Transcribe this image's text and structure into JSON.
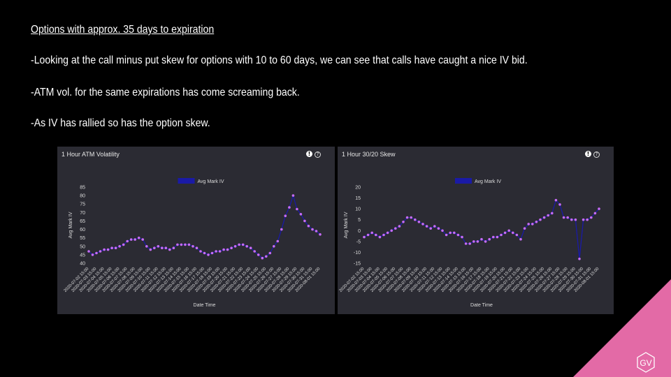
{
  "slide": {
    "heading": "Options with approx. 35 days to expiration",
    "bullets": [
      "-Looking at the call minus put skew for options with 10 to 60 days, we can see that calls have caught a nice IV bid.",
      "-ATM vol. for the same expirations has come screaming back.",
      "-As IV has rallied so has the option skew."
    ],
    "logo_text": "GV"
  },
  "colors": {
    "background": "#000000",
    "panel": "#2b2b33",
    "marker": "#c66cf5",
    "line": "#1a1aa6",
    "logo": "#e36aa6"
  },
  "chart_data": [
    {
      "type": "line",
      "title": "1 Hour ATM Volatility",
      "xlabel": "Date Time",
      "ylabel": "Avg Mark IV",
      "legend": [
        "Avg Mark IV"
      ],
      "legend_position": "top-center",
      "ylim": [
        40,
        85
      ],
      "yticks": [
        40,
        45,
        50,
        55,
        60,
        65,
        70,
        75,
        80,
        85
      ],
      "xticks": [
        "2020-07-02 15:00",
        "2020-07-03 15:00",
        "2020-07-04 15:00",
        "2020-07-05 15:00",
        "2020-07-06 15:00",
        "2020-07-07 15:00",
        "2020-07-08 15:00",
        "2020-07-09 15:00",
        "2020-07-10 15:00",
        "2020-07-11 15:00",
        "2020-07-12 15:00",
        "2020-07-13 15:00",
        "2020-07-14 15:00",
        "2020-07-15 15:00",
        "2020-07-16 15:00",
        "2020-07-17 15:00",
        "2020-07-18 15:00",
        "2020-07-19 15:00",
        "2020-07-20 15:00",
        "2020-07-21 15:00",
        "2020-07-22 15:00",
        "2020-07-23 15:00",
        "2020-07-24 15:00",
        "2020-07-25 15:00",
        "2020-07-26 15:00",
        "2020-07-27 15:00",
        "2020-07-28 15:00",
        "2020-07-29 15:00",
        "2020-07-30 15:00",
        "2020-07-31 15:00",
        "2020-08-01 15:00"
      ],
      "series": [
        {
          "name": "Avg Mark IV",
          "x": [
            0,
            0.5,
            1,
            1.5,
            2,
            2.5,
            3,
            3.5,
            4,
            4.5,
            5,
            5.5,
            6,
            6.5,
            7,
            7.5,
            8,
            8.5,
            9,
            9.5,
            10,
            10.5,
            11,
            11.5,
            12,
            12.5,
            13,
            13.5,
            14,
            14.5,
            15,
            15.5,
            16,
            16.5,
            17,
            17.5,
            18,
            18.5,
            19,
            19.5,
            20,
            20.5,
            21,
            21.5,
            22,
            22.5,
            23,
            23.5,
            24,
            24.5,
            25,
            25.5,
            26,
            26.5,
            27,
            27.5,
            28,
            28.5,
            29,
            29.5,
            30
          ],
          "values": [
            47,
            45,
            46,
            47,
            48,
            48,
            49,
            49,
            50,
            51,
            53,
            54,
            54,
            55,
            54,
            50,
            48,
            49,
            50,
            49,
            49,
            48,
            49,
            51,
            51,
            51,
            51,
            50,
            49,
            47,
            46,
            45,
            46,
            47,
            47,
            48,
            48,
            49,
            50,
            51,
            51,
            50,
            49,
            47,
            45,
            43,
            44,
            46,
            50,
            53,
            60,
            68,
            73,
            80,
            72,
            69,
            65,
            62,
            60,
            59,
            57
          ]
        }
      ]
    },
    {
      "type": "line",
      "title": "1 Hour 30/20 Skew",
      "xlabel": "Date Time",
      "ylabel": "Avg Mark IV",
      "legend": [
        "Avg Mark IV"
      ],
      "legend_position": "top-center",
      "ylim": [
        -15,
        20
      ],
      "yticks": [
        -15,
        -10,
        -5,
        0,
        5,
        10,
        15,
        20
      ],
      "xticks": [
        "2020-07-02 15:00",
        "2020-07-03 15:00",
        "2020-07-04 15:00",
        "2020-07-05 15:00",
        "2020-07-06 15:00",
        "2020-07-07 15:00",
        "2020-07-08 15:00",
        "2020-07-09 15:00",
        "2020-07-10 15:00",
        "2020-07-11 15:00",
        "2020-07-12 15:00",
        "2020-07-13 15:00",
        "2020-07-14 15:00",
        "2020-07-15 15:00",
        "2020-07-16 15:00",
        "2020-07-17 15:00",
        "2020-07-18 15:00",
        "2020-07-19 15:00",
        "2020-07-20 15:00",
        "2020-07-21 15:00",
        "2020-07-22 15:00",
        "2020-07-23 15:00",
        "2020-07-24 15:00",
        "2020-07-25 15:00",
        "2020-07-26 15:00",
        "2020-07-27 15:00",
        "2020-07-28 15:00",
        "2020-07-29 15:00",
        "2020-07-30 15:00",
        "2020-07-31 15:00",
        "2020-08-01 15:00"
      ],
      "series": [
        {
          "name": "Avg Mark IV",
          "x": [
            0,
            0.5,
            1,
            1.5,
            2,
            2.5,
            3,
            3.5,
            4,
            4.5,
            5,
            5.5,
            6,
            6.5,
            7,
            7.5,
            8,
            8.5,
            9,
            9.5,
            10,
            10.5,
            11,
            11.5,
            12,
            12.5,
            13,
            13.5,
            14,
            14.5,
            15,
            15.5,
            16,
            16.5,
            17,
            17.5,
            18,
            18.5,
            19,
            19.5,
            20,
            20.5,
            21,
            21.5,
            22,
            22.5,
            23,
            23.5,
            24,
            24.5,
            25,
            25.5,
            26,
            26.5,
            27,
            27.5,
            28,
            28.5,
            29,
            29.5,
            30
          ],
          "values": [
            -3,
            -2,
            -1,
            -2,
            -3,
            -2,
            -1,
            0,
            1,
            2,
            4,
            6,
            6,
            5,
            4,
            3,
            2,
            1,
            2,
            1,
            0,
            -2,
            -1,
            -1,
            -2,
            -3,
            -6,
            -6,
            -5,
            -5,
            -4,
            -5,
            -4,
            -3,
            -3,
            -2,
            -1,
            0,
            -1,
            -2,
            -4,
            1,
            3,
            3,
            4,
            5,
            6,
            7,
            8,
            14,
            12,
            6,
            6,
            5,
            5,
            -13,
            5,
            5,
            6,
            8,
            10
          ]
        }
      ]
    }
  ]
}
